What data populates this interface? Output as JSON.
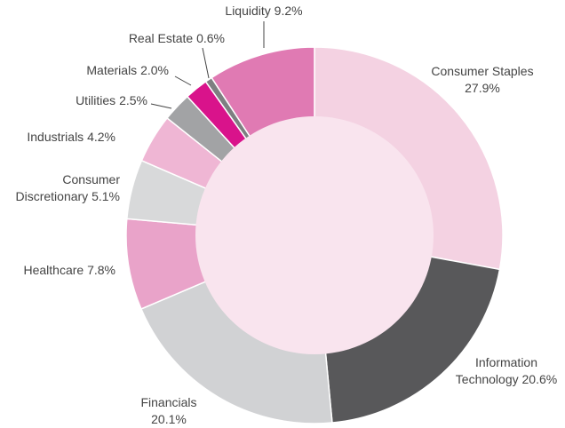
{
  "chart_data": {
    "type": "donut",
    "categories": [
      "Consumer Staples",
      "Information Technology",
      "Financials",
      "Healthcare",
      "Consumer Discretionary",
      "Industrials",
      "Utilities",
      "Materials",
      "Real Estate",
      "Liquidity"
    ],
    "values": [
      27.9,
      20.6,
      20.1,
      7.8,
      5.1,
      4.2,
      2.5,
      2.0,
      0.6,
      9.2
    ],
    "value_labels": [
      "27.9%",
      "20.6%",
      "20.1%",
      "7.8%",
      "5.1%",
      "4.2%",
      "2.5%",
      "2.0%",
      "0.6%",
      "9.2%"
    ],
    "colors": [
      "#f4d2e2",
      "#58585a",
      "#d1d2d4",
      "#e9a3c9",
      "#d8d9da",
      "#efb6d4",
      "#a2a3a5",
      "#d9138b",
      "#7e7f81",
      "#e07ab3"
    ]
  }
}
